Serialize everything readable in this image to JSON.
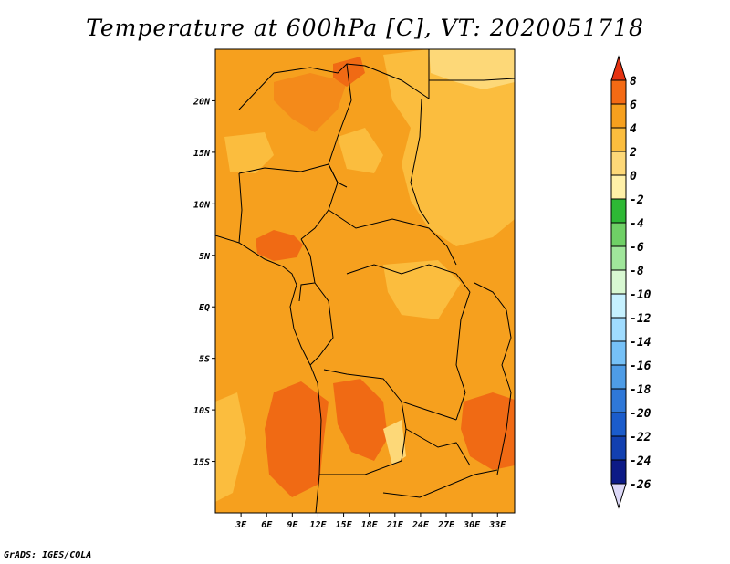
{
  "title": "Temperature at 600hPa [C], VT: 2020051718",
  "credit": "GrADS: IGES/COLA",
  "map": {
    "lon_range": [
      0,
      35
    ],
    "lat_range": [
      -20,
      25
    ],
    "lat_ticks": [
      {
        "value": 20,
        "label": "20N"
      },
      {
        "value": 15,
        "label": "15N"
      },
      {
        "value": 10,
        "label": "10N"
      },
      {
        "value": 5,
        "label": "5N"
      },
      {
        "value": 0,
        "label": "EQ"
      },
      {
        "value": -5,
        "label": "5S"
      },
      {
        "value": -10,
        "label": "10S"
      },
      {
        "value": -15,
        "label": "15S"
      }
    ],
    "lon_ticks": [
      {
        "value": 3,
        "label": "3E"
      },
      {
        "value": 6,
        "label": "6E"
      },
      {
        "value": 9,
        "label": "9E"
      },
      {
        "value": 12,
        "label": "12E"
      },
      {
        "value": 15,
        "label": "15E"
      },
      {
        "value": 18,
        "label": "18E"
      },
      {
        "value": 21,
        "label": "21E"
      },
      {
        "value": 24,
        "label": "24E"
      },
      {
        "value": 27,
        "label": "27E"
      },
      {
        "value": 30,
        "label": "30E"
      },
      {
        "value": 33,
        "label": "33E"
      }
    ]
  },
  "colorbar": {
    "labels": [
      "8",
      "6",
      "4",
      "2",
      "0",
      "-2",
      "-4",
      "-6",
      "-8",
      "-10",
      "-12",
      "-14",
      "-16",
      "-18",
      "-20",
      "-22",
      "-24",
      "-26"
    ],
    "colors": [
      "#e63312",
      "#f46a14",
      "#f6a01e",
      "#fbbd3e",
      "#fdd878",
      "#fff0a8",
      "#2eb835",
      "#6fd066",
      "#a0e69b",
      "#d8f8d2",
      "#c6f1ff",
      "#a0dcff",
      "#76c1f7",
      "#4e9ce6",
      "#2f78d8",
      "#1b5ccb",
      "#1240b0",
      "#0c1a86",
      "#dcd8f7"
    ]
  }
}
